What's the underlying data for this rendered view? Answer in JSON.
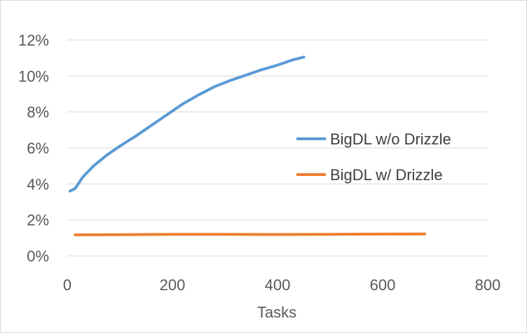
{
  "chart_data": {
    "type": "line",
    "title": "",
    "xlabel": "Tasks",
    "ylabel": "",
    "xlim": [
      0,
      800
    ],
    "ylim": [
      0,
      12
    ],
    "x_ticks": [
      "0",
      "200",
      "400",
      "600",
      "800"
    ],
    "y_ticks": [
      "0%",
      "2%",
      "4%",
      "6%",
      "8%",
      "10%",
      "12%"
    ],
    "grid": true,
    "legend_position": "right",
    "series": [
      {
        "name": "BigDL w/o Drizzle",
        "color": "#5b9bd5",
        "x": [
          5,
          15,
          30,
          50,
          75,
          100,
          130,
          160,
          190,
          220,
          250,
          280,
          310,
          340,
          370,
          400,
          430,
          450
        ],
        "y": [
          3.6,
          3.75,
          4.4,
          5.0,
          5.6,
          6.1,
          6.65,
          7.25,
          7.85,
          8.45,
          8.95,
          9.4,
          9.75,
          10.05,
          10.35,
          10.6,
          10.9,
          11.05
        ]
      },
      {
        "name": "BigDL w/ Drizzle",
        "color": "#ed7d31",
        "x": [
          15,
          100,
          200,
          300,
          400,
          500,
          600,
          680
        ],
        "y": [
          1.17,
          1.18,
          1.2,
          1.2,
          1.19,
          1.2,
          1.21,
          1.22
        ]
      }
    ]
  }
}
